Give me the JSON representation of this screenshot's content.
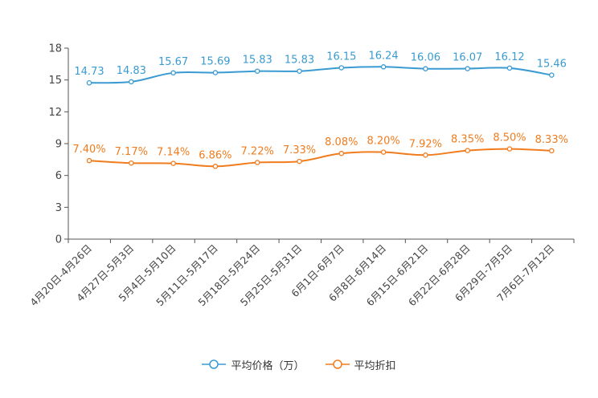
{
  "chart_data": {
    "type": "line",
    "categories": [
      "4月20日-4月26日",
      "4月27日-5月3日",
      "5月4日-5月10日",
      "5月11日-5月17日",
      "5月18日-5月24日",
      "5月25日-5月31日",
      "6月1日-6月7日",
      "6月8日-6月14日",
      "6月15日-6月21日",
      "6月22日-6月28日",
      "6月29日-7月5日",
      "7月6日-7月12日"
    ],
    "series": [
      {
        "name": "平均价格（万）",
        "color": "#3a9bd2",
        "values": [
          14.73,
          14.83,
          15.67,
          15.69,
          15.83,
          15.83,
          16.15,
          16.24,
          16.06,
          16.07,
          16.12,
          15.46
        ],
        "labels": [
          "14.73",
          "14.83",
          "15.67",
          "15.69",
          "15.83",
          "15.83",
          "16.15",
          "16.24",
          "16.06",
          "16.07",
          "16.12",
          "15.46"
        ]
      },
      {
        "name": "平均折扣",
        "color": "#f07c1e",
        "values": [
          7.4,
          7.17,
          7.14,
          6.86,
          7.22,
          7.33,
          8.08,
          8.2,
          7.92,
          8.35,
          8.5,
          8.33
        ],
        "labels": [
          "7.40%",
          "7.17%",
          "7.14%",
          "6.86%",
          "7.22%",
          "7.33%",
          "8.08%",
          "8.20%",
          "7.92%",
          "8.35%",
          "8.50%",
          "8.33%"
        ]
      }
    ],
    "ylim": [
      0,
      18
    ],
    "yticks": [
      "0",
      "3",
      "6",
      "9",
      "12",
      "15",
      "18"
    ],
    "ytick_values": [
      0,
      3,
      6,
      9,
      12,
      15,
      18
    ],
    "legend_position": "bottom-center"
  }
}
